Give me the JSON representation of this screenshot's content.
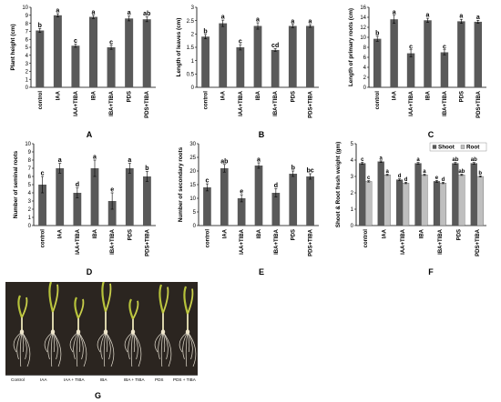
{
  "chart_data": [
    {
      "type": "bar",
      "panel": "A",
      "categories": [
        "control",
        "IAA",
        "IAA+TIBA",
        "IBA",
        "IBA+TIBA",
        "PDS",
        "PDS+TIBA"
      ],
      "values": [
        7.1,
        9.0,
        5.2,
        8.8,
        5.0,
        8.6,
        8.5
      ],
      "errors": [
        0.25,
        0.2,
        0.2,
        0.2,
        0.25,
        0.3,
        0.3
      ],
      "letters": [
        "b",
        "a",
        "c",
        "a",
        "c",
        "a",
        "ab"
      ],
      "ylabel": "Plant height (cm)",
      "ylim": [
        0,
        10
      ],
      "yticks": [
        0,
        1,
        2,
        3,
        4,
        5,
        6,
        7,
        8,
        9,
        10
      ]
    },
    {
      "type": "bar",
      "panel": "B",
      "categories": [
        "control",
        "IAA",
        "IAA+TIBA",
        "IBA",
        "IBA+TIBA",
        "PDS",
        "PDS+TIBA"
      ],
      "values": [
        1.9,
        2.4,
        1.5,
        2.3,
        1.4,
        2.3,
        2.3
      ],
      "errors": [
        0.08,
        0.12,
        0.1,
        0.12,
        0.05,
        0.06,
        0.05
      ],
      "letters": [
        "b",
        "a",
        "c",
        "a",
        "cd",
        "a",
        "a"
      ],
      "ylabel": "Length of leaves (cm)",
      "ylim": [
        0,
        3
      ],
      "yticks": [
        0,
        0.5,
        1,
        1.5,
        2,
        2.5,
        3
      ]
    },
    {
      "type": "bar",
      "panel": "C",
      "categories": [
        "control",
        "IAA",
        "IAA+TIBA",
        "IBA",
        "IBA+TIBA",
        "PDS",
        "PDS+TIBA"
      ],
      "values": [
        9.7,
        13.6,
        6.8,
        13.4,
        7.0,
        13.2,
        13.1
      ],
      "errors": [
        0.5,
        0.8,
        0.7,
        0.4,
        0.5,
        0.4,
        0.3
      ],
      "letters": [
        "b",
        "a",
        "c",
        "a",
        "c",
        "a",
        "a"
      ],
      "ylabel": "Length of primary roots (cm)",
      "ylim": [
        0,
        16
      ],
      "yticks": [
        0,
        2,
        4,
        6,
        8,
        10,
        12,
        14,
        16
      ]
    },
    {
      "type": "bar",
      "panel": "D",
      "categories": [
        "control",
        "IAA",
        "IAA+TIBA",
        "IBA",
        "IBA+TIBA",
        "PDS",
        "PDS+TIBA"
      ],
      "values": [
        5.0,
        7.0,
        4.0,
        7.0,
        3.0,
        7.0,
        6.0
      ],
      "errors": [
        1.0,
        0.6,
        0.6,
        1.0,
        1.0,
        0.6,
        0.6
      ],
      "letters": [
        "c",
        "a",
        "d",
        "a",
        "e",
        "a",
        "b"
      ],
      "ylabel": "Number of seminal roots",
      "ylim": [
        0,
        10
      ],
      "yticks": [
        0,
        1,
        2,
        3,
        4,
        5,
        6,
        7,
        8,
        9,
        10
      ]
    },
    {
      "type": "bar",
      "panel": "E",
      "categories": [
        "control",
        "IAA",
        "IAA+TIBA",
        "IBA",
        "IBA+TIBA",
        "PDS",
        "PDS+TIBA"
      ],
      "values": [
        14.0,
        21.0,
        10.0,
        22.0,
        12.0,
        19.0,
        18.0
      ],
      "errors": [
        1.3,
        1.4,
        1.3,
        1.0,
        1.5,
        1.0,
        1.0
      ],
      "letters": [
        "c",
        "ab",
        "e",
        "a",
        "d",
        "b",
        "bc"
      ],
      "ylabel": "Number of secondary roots",
      "ylim": [
        0,
        30
      ],
      "yticks": [
        0,
        5,
        10,
        15,
        20,
        25,
        30
      ]
    },
    {
      "type": "bar",
      "panel": "F",
      "categories": [
        "control",
        "IAA",
        "IAA+TIBA",
        "IBA",
        "IBA+TIBA",
        "PDS",
        "PDS+TIBA"
      ],
      "series": [
        {
          "name": "Shoot",
          "color": "#595959",
          "values": [
            3.8,
            3.9,
            2.8,
            3.8,
            2.7,
            3.8,
            3.8
          ],
          "errors": [
            0.06,
            0.05,
            0.05,
            0.05,
            0.05,
            0.05,
            0.05
          ],
          "letters": [
            "c",
            "a",
            "d",
            "a",
            "e",
            "ab",
            "ab"
          ]
        },
        {
          "name": "Root",
          "color": "#bfbfbf",
          "values": [
            2.7,
            3.1,
            2.6,
            3.1,
            2.6,
            3.1,
            3.0
          ],
          "errors": [
            0.04,
            0.04,
            0.04,
            0.04,
            0.04,
            0.04,
            0.04
          ],
          "letters": [
            "c",
            "a",
            "d",
            "a",
            "d",
            "ab",
            "b"
          ]
        }
      ],
      "ylabel": "Shoot & Root fresh weight (gm)",
      "ylim": [
        0,
        5
      ],
      "yticks": [
        0,
        1,
        2,
        3,
        4,
        5
      ],
      "legend": "top-right"
    }
  ],
  "photo": {
    "letter": "G",
    "labels": [
      "Control",
      "IAA",
      "IAA + TIBA",
      "IBA",
      "IBA + TIBA",
      "PDS",
      "PDS + TIBA"
    ]
  }
}
